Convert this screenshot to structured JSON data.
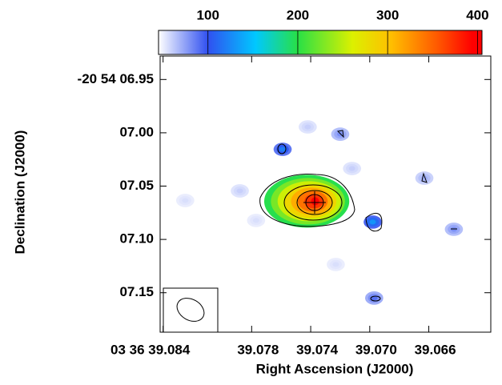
{
  "chart_data": {
    "type": "image",
    "xlabel": "Right Ascension (J2000)",
    "ylabel": "Declination (J2000)",
    "xlim": [
      39.0842,
      39.0618
    ],
    "ylim": [
      6.928,
      7.187
    ],
    "xticks": [
      {
        "value": 39.084,
        "label": "03 36 39.084"
      },
      {
        "value": 39.078,
        "label": "39.078"
      },
      {
        "value": 39.074,
        "label": "39.074"
      },
      {
        "value": 39.07,
        "label": "39.070"
      },
      {
        "value": 39.066,
        "label": "39.066"
      }
    ],
    "yticks": [
      {
        "value": 6.95,
        "label": "-20 54 06.95"
      },
      {
        "value": 7.0,
        "label": "07.00"
      },
      {
        "value": 7.05,
        "label": "07.05"
      },
      {
        "value": 7.1,
        "label": "07.10"
      },
      {
        "value": 7.15,
        "label": "07.15"
      }
    ],
    "clim": [
      45,
      405
    ],
    "cticks": [
      100,
      200,
      300,
      400
    ],
    "components": {
      "x": [
        39.0737,
        39.0759,
        39.0698,
        39.072,
        39.0697,
        39.0663,
        39.0643,
        39.0788,
        39.0712,
        39.0742,
        39.0777,
        39.0825,
        39.0723
      ],
      "y": [
        7.0642,
        7.0155,
        7.0837,
        7.0013,
        7.155,
        7.0425,
        7.0905,
        7.0545,
        7.0335,
        6.9945,
        7.0822,
        7.0635,
        7.1235
      ],
      "values": [
        400,
        120,
        130,
        80,
        90,
        70,
        80,
        60,
        60,
        60,
        55,
        55,
        55
      ]
    }
  }
}
